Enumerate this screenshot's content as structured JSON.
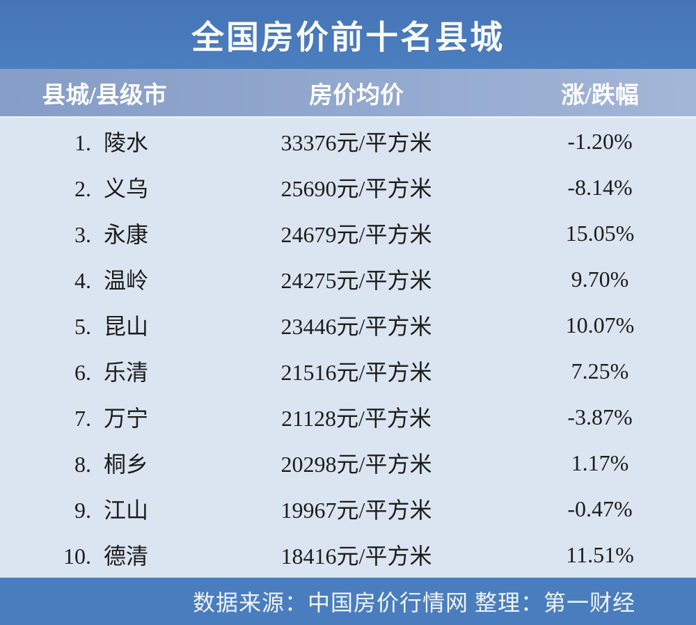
{
  "title": "全国房价前十名县城",
  "table": {
    "columns": [
      "县城/县级市",
      "房价均价",
      "涨/跌幅"
    ],
    "rows": [
      {
        "rank": "1.",
        "name": "陵水",
        "price": "33376元/平方米",
        "change": "-1.20%"
      },
      {
        "rank": "2.",
        "name": "义乌",
        "price": "25690元/平方米",
        "change": "-8.14%"
      },
      {
        "rank": "3.",
        "name": "永康",
        "price": "24679元/平方米",
        "change": "15.05%"
      },
      {
        "rank": "4.",
        "name": "温岭",
        "price": "24275元/平方米",
        "change": "9.70%"
      },
      {
        "rank": "5.",
        "name": "昆山",
        "price": "23446元/平方米",
        "change": "10.07%"
      },
      {
        "rank": "6.",
        "name": "乐清",
        "price": "21516元/平方米",
        "change": "7.25%"
      },
      {
        "rank": "7.",
        "name": "万宁",
        "price": "21128元/平方米",
        "change": "-3.87%"
      },
      {
        "rank": "8.",
        "name": "桐乡",
        "price": "20298元/平方米",
        "change": "1.17%"
      },
      {
        "rank": "9.",
        "name": "江山",
        "price": "19967元/平方米",
        "change": "-0.47%"
      },
      {
        "rank": "10.",
        "name": "德清",
        "price": "18416元/平方米",
        "change": "11.51%"
      }
    ]
  },
  "footer": {
    "text": "数据来源：中国房价行情网 整理：第一财经"
  },
  "colors": {
    "title_bar_blue": "#4879BB",
    "header_band_blue": "#8FA6CD",
    "body_light_blue": "#DBE5F1",
    "footer_blue": "#4A7DBD",
    "row_text": "#1C1C1C",
    "header_text": "#FFFFFF"
  },
  "chart_data": {
    "type": "table",
    "title": "全国房价前十名县城",
    "columns": [
      "县城/县级市",
      "房价均价",
      "涨/跌幅"
    ],
    "counties": [
      "陵水",
      "义乌",
      "永康",
      "温岭",
      "昆山",
      "乐清",
      "万宁",
      "桐乡",
      "江山",
      "德清"
    ],
    "avg_price_yuan_per_sqm": [
      33376,
      25690,
      24679,
      24275,
      23446,
      21516,
      21128,
      20298,
      19967,
      18416
    ],
    "change_percent": [
      -1.2,
      -8.14,
      15.05,
      9.7,
      10.07,
      7.25,
      -3.87,
      1.17,
      -0.47,
      11.51
    ],
    "source": "数据来源：中国房价行情网 整理：第一财经"
  }
}
